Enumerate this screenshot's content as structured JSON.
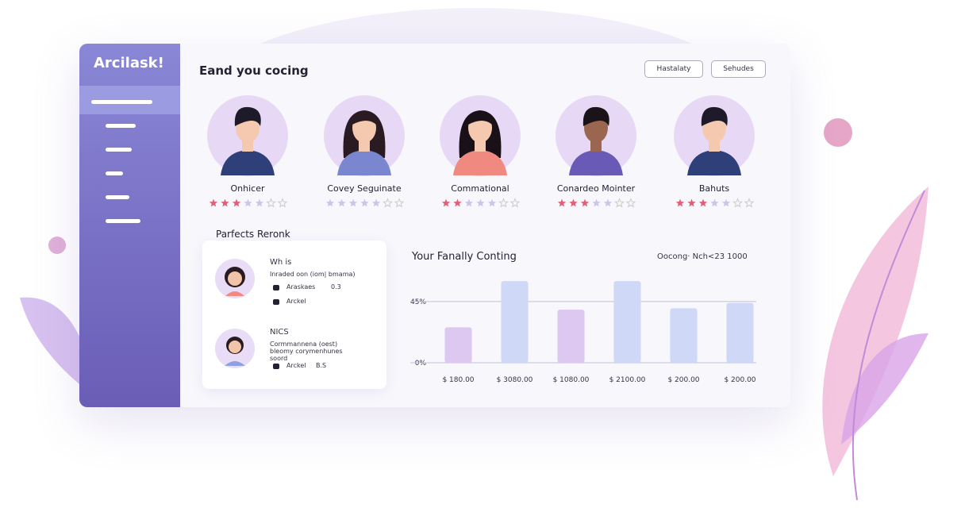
{
  "brand": "Arcilask!",
  "header": {
    "title": "Eand you cocing",
    "buttons": [
      "Hastalaty",
      "Sehudes"
    ]
  },
  "people": [
    {
      "name": "Onhicer",
      "rating": 3
    },
    {
      "name": "Covey Seguinate",
      "rating": 0
    },
    {
      "name": "Commational",
      "rating": 2
    },
    {
      "name": "Conardeo Mointer",
      "rating": 3
    },
    {
      "name": "Bahuts",
      "rating": 3
    }
  ],
  "rating_scale": 7,
  "panel": {
    "title": "Parfects Reronk",
    "cards": [
      {
        "title": "Wh is",
        "subtitle": "Inraded oon (iom| bmama)",
        "rows": [
          [
            "Araskaes",
            "0.3"
          ],
          [
            "Arckel",
            ""
          ]
        ]
      },
      {
        "title": "NICS",
        "subtitle": "Cormmannena (oest) bleomy corymenhunes soord",
        "rows": [
          [
            "Arckel",
            "B.S"
          ]
        ]
      }
    ]
  },
  "chart_data": {
    "type": "bar",
    "title": "Your Fanally Conting",
    "legend": "Oocong· Nch<23 1000",
    "categories": [
      "$ 180.00",
      "$ 3080.00",
      "$ 1080.00",
      "$ 2100.00",
      "$ 200.00",
      "$ 200.00"
    ],
    "values": [
      26,
      60,
      39,
      60,
      40,
      44
    ],
    "colors": [
      "#dcc8f0",
      "#cfd8f7",
      "#dcc8f0",
      "#cfd8f7",
      "#cfd8f7",
      "#cfd8f7"
    ],
    "ylim": [
      0,
      70
    ],
    "yticks": [
      {
        "value": 0,
        "label": "0%"
      },
      {
        "value": 45,
        "label": "45%"
      }
    ],
    "grid": true
  }
}
